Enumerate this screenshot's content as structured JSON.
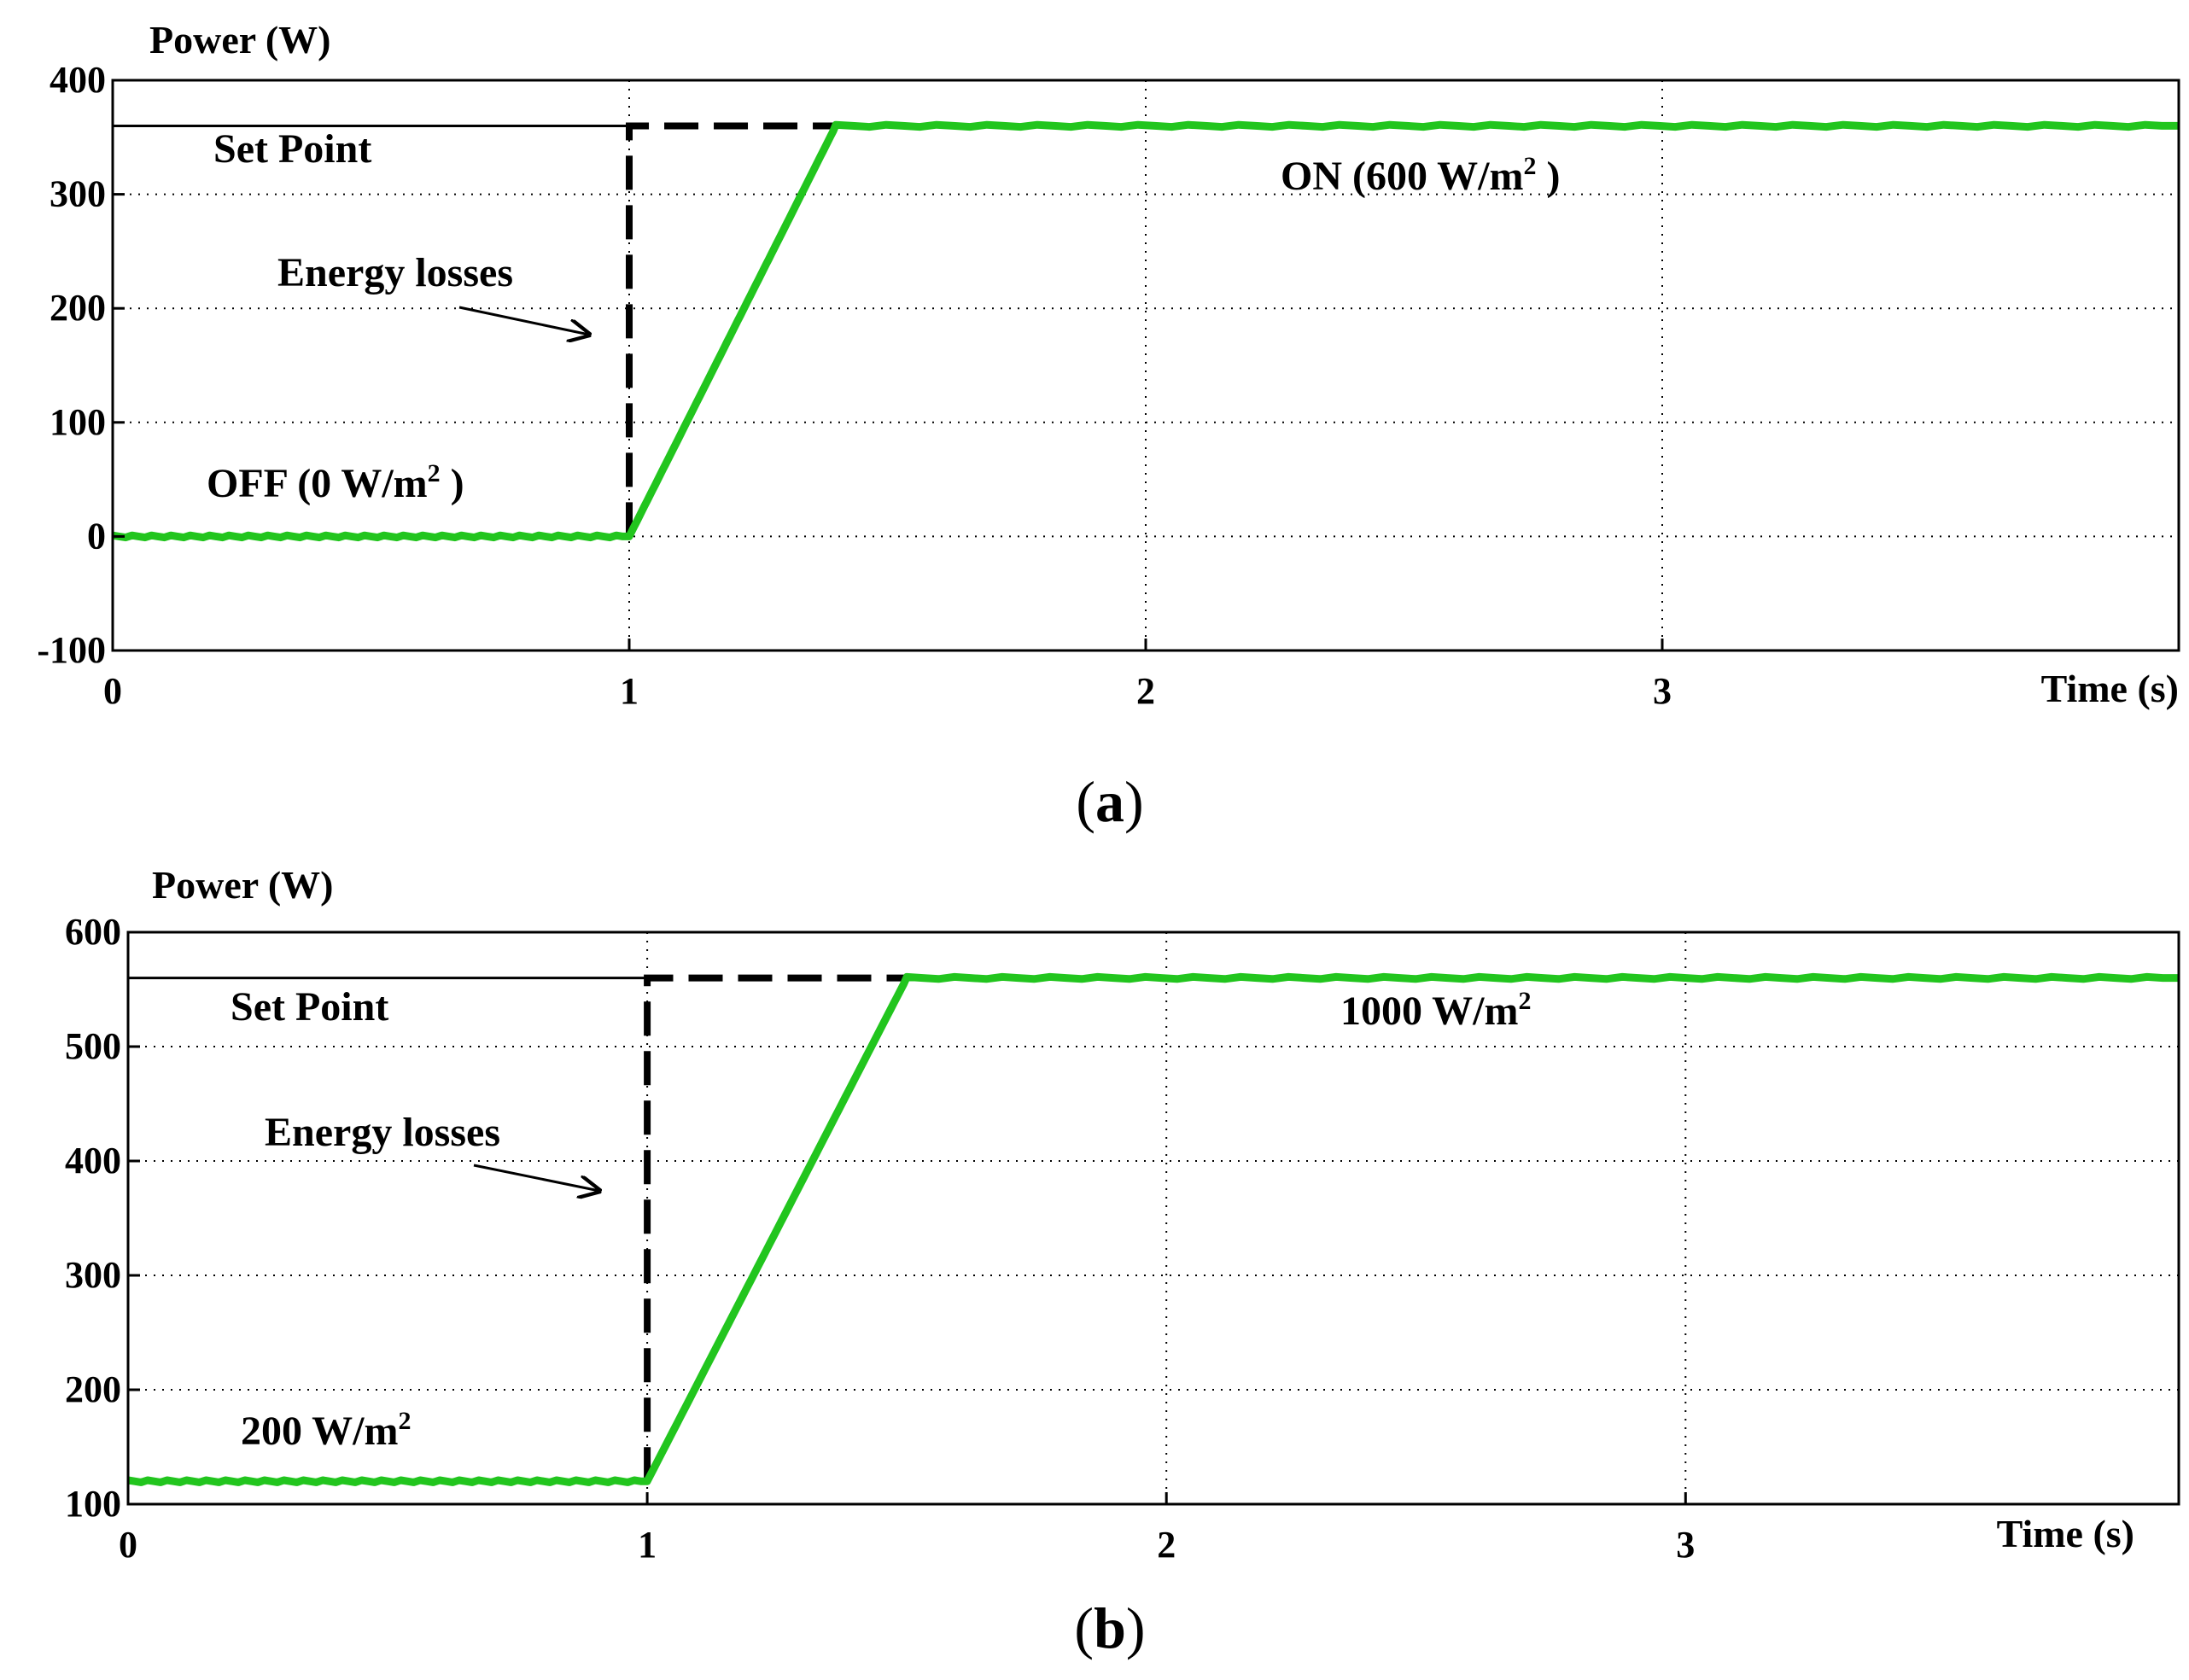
{
  "colors": {
    "series": "#22c51e",
    "axis": "#000000",
    "setpoint": "#000000"
  },
  "chart_data": [
    {
      "type": "line",
      "panel": "a",
      "caption_open": "(",
      "caption_letter": "a",
      "caption_close": ")",
      "ylabel": "Power (W)",
      "xlabel": "Time (s)",
      "xlim": [
        0,
        4
      ],
      "ylim": [
        -100,
        400
      ],
      "xticks": [
        0,
        1,
        2,
        3
      ],
      "yticks": [
        -100,
        0,
        100,
        200,
        300,
        400
      ],
      "grid": true,
      "setpoint": {
        "label": "Set Point",
        "value": 360,
        "step_time": 1
      },
      "series": [
        {
          "name": "Power",
          "x": [
            0,
            1,
            1.4,
            4
          ],
          "y": [
            0,
            0,
            360,
            360
          ]
        }
      ],
      "annotations": {
        "losses": "Energy losses",
        "before": {
          "text": "OFF (0 W/m",
          "sup": "2",
          "tail": " )"
        },
        "after": {
          "text": "ON (600 W/m",
          "sup": "2",
          "tail": " )"
        }
      }
    },
    {
      "type": "line",
      "panel": "b",
      "caption_open": "(",
      "caption_letter": "b",
      "caption_close": ")",
      "ylabel": "Power (W)",
      "xlabel": "Time (s)",
      "xlim": [
        0,
        3.95
      ],
      "ylim": [
        100,
        600
      ],
      "xticks": [
        0,
        1,
        2,
        3
      ],
      "yticks": [
        100,
        200,
        300,
        400,
        500,
        600
      ],
      "grid": true,
      "setpoint": {
        "label": "Set Point",
        "value": 560,
        "step_time": 1
      },
      "series": [
        {
          "name": "Power",
          "x": [
            0,
            1,
            1.5,
            3.95
          ],
          "y": [
            120,
            120,
            560,
            560
          ]
        }
      ],
      "annotations": {
        "losses": "Energy losses",
        "before": {
          "text": "200 W/m",
          "sup": "2",
          "tail": ""
        },
        "after": {
          "text": "1000 W/m",
          "sup": "2",
          "tail": ""
        }
      }
    }
  ]
}
